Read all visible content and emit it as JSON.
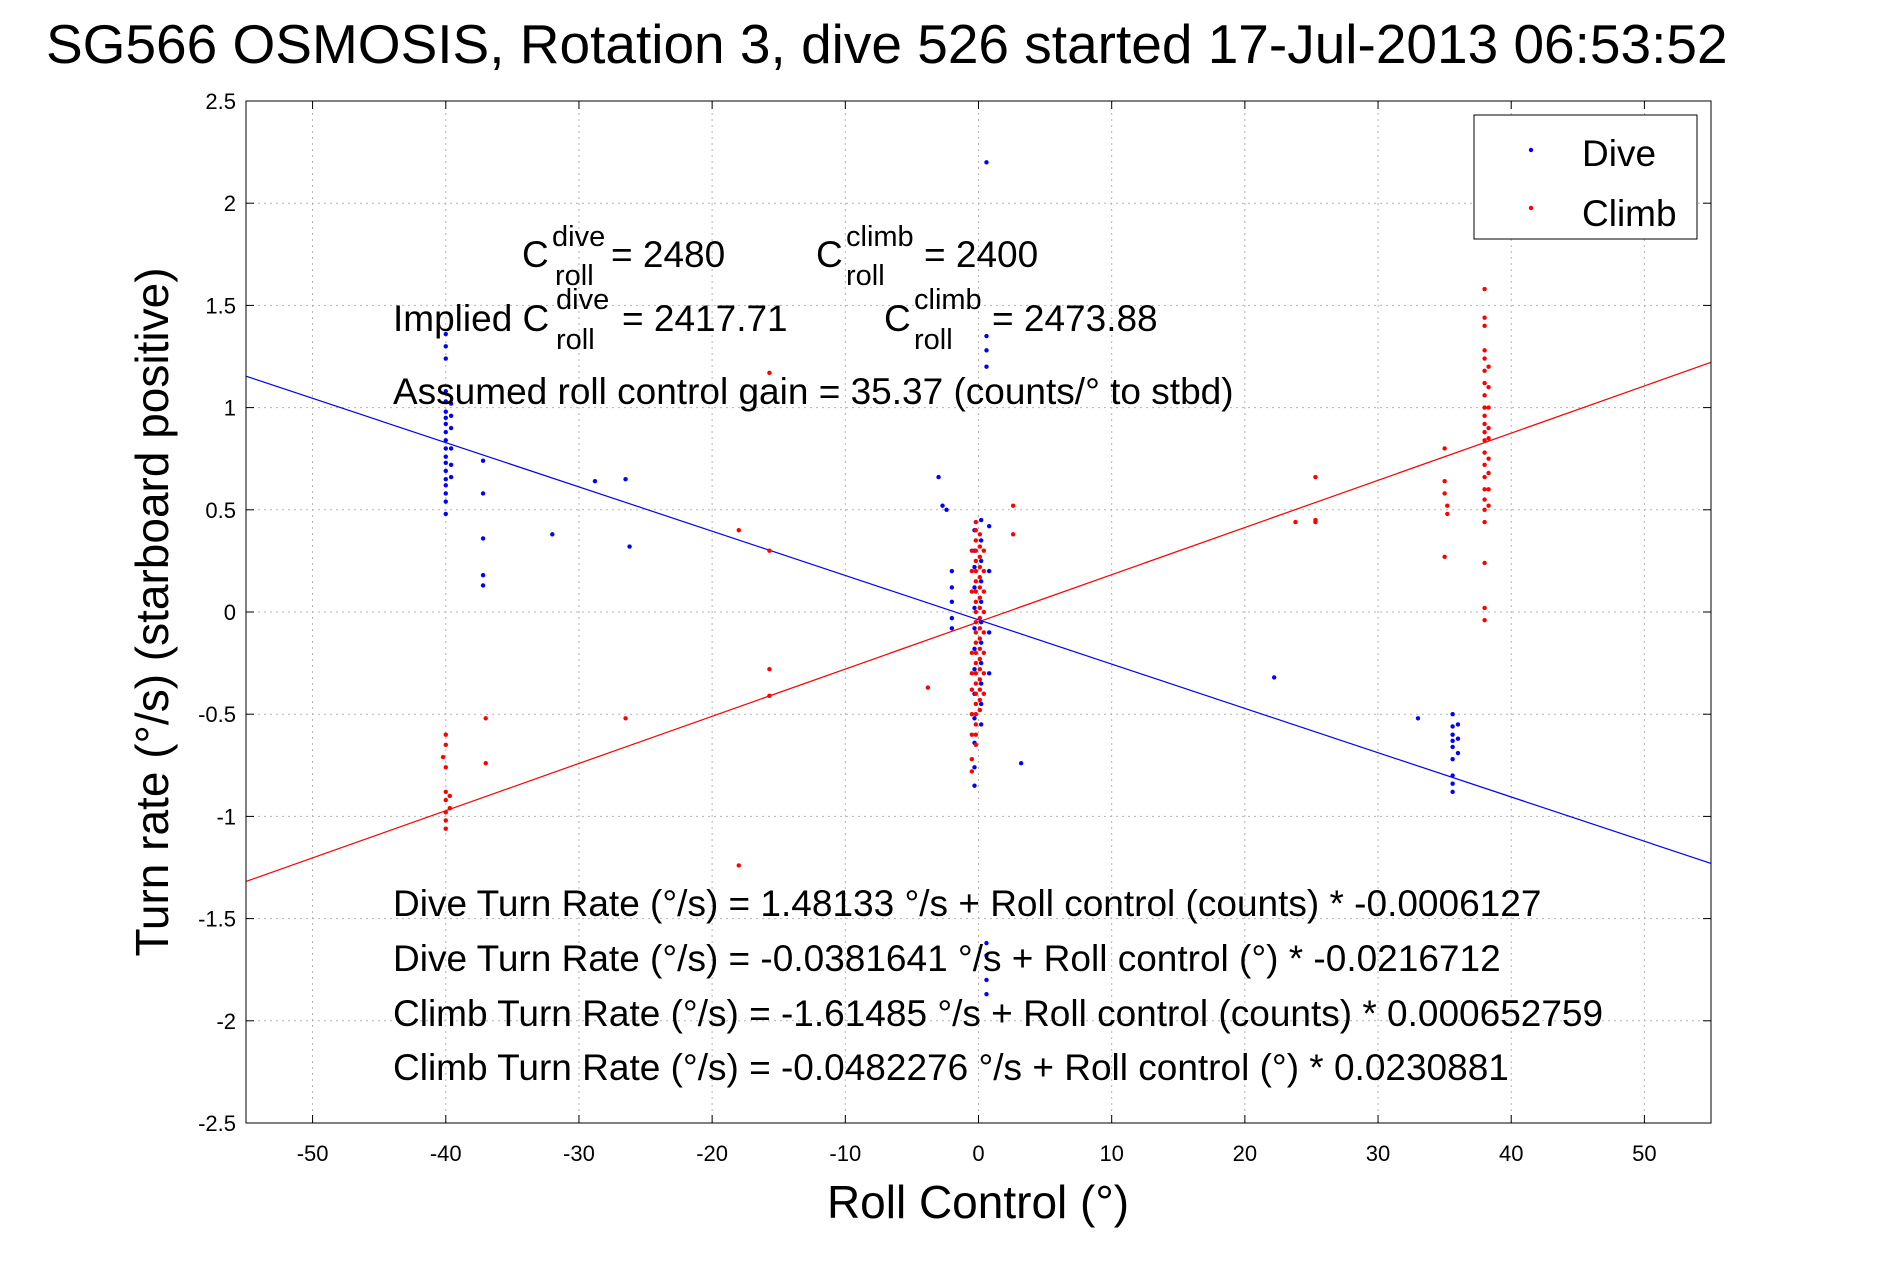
{
  "chart_data": {
    "type": "scatter",
    "title": "SG566 OSMOSIS, Rotation 3, dive 526 started 17-Jul-2013 06:53:52",
    "xlabel": "Roll Control (°)",
    "ylabel": "Turn rate (°/s) (starboard positive)",
    "xlim": [
      -55,
      55
    ],
    "ylim": [
      -2.5,
      2.5
    ],
    "xticks": [
      "-50",
      "-40",
      "-30",
      "-20",
      "-10",
      "0",
      "10",
      "20",
      "30",
      "40",
      "50"
    ],
    "yticks": [
      "2.5",
      "2",
      "1.5",
      "1",
      "0.5",
      "0",
      "-0.5",
      "-1",
      "-1.5",
      "-2",
      "-2.5"
    ],
    "grid": true,
    "legend_position": "top-right",
    "series": [
      {
        "name": "Dive",
        "color": "#0000ff",
        "marker": "point",
        "points": [
          [
            -40,
            1.36
          ],
          [
            -40,
            1.3
          ],
          [
            -40,
            1.24
          ],
          [
            -40,
            1.08
          ],
          [
            -40,
            1.03
          ],
          [
            -40,
            0.98
          ],
          [
            -40,
            0.95
          ],
          [
            -40,
            0.92
          ],
          [
            -40,
            0.88
          ],
          [
            -40,
            0.84
          ],
          [
            -40,
            0.8
          ],
          [
            -40,
            0.76
          ],
          [
            -40,
            0.73
          ],
          [
            -40,
            0.69
          ],
          [
            -40,
            0.65
          ],
          [
            -40,
            0.62
          ],
          [
            -40,
            0.58
          ],
          [
            -40,
            0.54
          ],
          [
            -40,
            0.48
          ],
          [
            -39.6,
            1.02
          ],
          [
            -39.6,
            0.96
          ],
          [
            -39.6,
            0.9
          ],
          [
            -39.6,
            0.8
          ],
          [
            -39.6,
            0.72
          ],
          [
            -39.6,
            0.66
          ],
          [
            -37.2,
            0.74
          ],
          [
            -37.2,
            0.58
          ],
          [
            -37.2,
            0.36
          ],
          [
            -37.2,
            0.18
          ],
          [
            -37.2,
            0.13
          ],
          [
            -32,
            0.38
          ],
          [
            -28.8,
            0.64
          ],
          [
            -26.5,
            0.65
          ],
          [
            -26.2,
            0.32
          ],
          [
            -3,
            0.66
          ],
          [
            -2.7,
            0.52
          ],
          [
            -2.4,
            0.5
          ],
          [
            -2,
            0.2
          ],
          [
            -2,
            0.12
          ],
          [
            -2,
            0.05
          ],
          [
            -2,
            -0.03
          ],
          [
            -2,
            -0.08
          ],
          [
            -0.3,
            0.4
          ],
          [
            -0.3,
            0.3
          ],
          [
            -0.3,
            0.22
          ],
          [
            -0.3,
            0.12
          ],
          [
            -0.3,
            0.02
          ],
          [
            -0.3,
            -0.08
          ],
          [
            -0.3,
            -0.18
          ],
          [
            -0.3,
            -0.28
          ],
          [
            -0.3,
            -0.4
          ],
          [
            -0.3,
            -0.52
          ],
          [
            -0.3,
            -0.64
          ],
          [
            -0.3,
            -0.76
          ],
          [
            -0.3,
            -0.85
          ],
          [
            0.2,
            0.45
          ],
          [
            0.2,
            0.35
          ],
          [
            0.2,
            0.25
          ],
          [
            0.2,
            0.15
          ],
          [
            0.2,
            0.05
          ],
          [
            0.2,
            -0.05
          ],
          [
            0.2,
            -0.15
          ],
          [
            0.2,
            -0.25
          ],
          [
            0.2,
            -0.35
          ],
          [
            0.2,
            -0.45
          ],
          [
            0.2,
            -0.55
          ],
          [
            0.6,
            2.2
          ],
          [
            0.6,
            1.35
          ],
          [
            0.6,
            1.28
          ],
          [
            0.6,
            1.2
          ],
          [
            0.6,
            -1.62
          ],
          [
            0.6,
            -1.68
          ],
          [
            0.6,
            -1.8
          ],
          [
            0.6,
            -1.87
          ],
          [
            0.8,
            0.42
          ],
          [
            0.8,
            0.2
          ],
          [
            0.8,
            -0.1
          ],
          [
            0.8,
            -0.3
          ],
          [
            3.2,
            -0.74
          ],
          [
            22.2,
            -0.32
          ],
          [
            33,
            -0.52
          ],
          [
            35.6,
            -0.5
          ],
          [
            35.6,
            -0.56
          ],
          [
            35.6,
            -0.6
          ],
          [
            35.6,
            -0.63
          ],
          [
            35.6,
            -0.66
          ],
          [
            35.6,
            -0.72
          ],
          [
            35.6,
            -0.8
          ],
          [
            35.6,
            -0.84
          ],
          [
            35.6,
            -0.88
          ],
          [
            36,
            -0.55
          ],
          [
            36,
            -0.62
          ],
          [
            36,
            -0.69
          ]
        ]
      },
      {
        "name": "Climb",
        "color": "#ff0000",
        "marker": "point",
        "points": [
          [
            -40.2,
            -0.71
          ],
          [
            -40,
            -0.6
          ],
          [
            -40,
            -0.65
          ],
          [
            -40,
            -0.76
          ],
          [
            -40,
            -0.88
          ],
          [
            -40,
            -0.92
          ],
          [
            -40,
            -0.98
          ],
          [
            -40,
            -1.02
          ],
          [
            -40,
            -1.06
          ],
          [
            -39.7,
            -0.9
          ],
          [
            -39.7,
            -0.96
          ],
          [
            -37,
            -0.52
          ],
          [
            -37,
            -0.74
          ],
          [
            -26.5,
            -0.52
          ],
          [
            -18,
            0.4
          ],
          [
            -18,
            -1.24
          ],
          [
            -15.7,
            1.17
          ],
          [
            -15.7,
            0.3
          ],
          [
            -15.7,
            -0.28
          ],
          [
            -15.7,
            -0.41
          ],
          [
            -3.8,
            -0.37
          ],
          [
            -0.5,
            -0.2
          ],
          [
            -0.5,
            -0.3
          ],
          [
            -0.5,
            -0.38
          ],
          [
            -0.5,
            -0.5
          ],
          [
            -0.5,
            -0.6
          ],
          [
            -0.5,
            -0.72
          ],
          [
            -0.5,
            -0.78
          ],
          [
            -0.5,
            0.1
          ],
          [
            -0.5,
            0.2
          ],
          [
            -0.5,
            0.3
          ],
          [
            -0.2,
            0.44
          ],
          [
            -0.2,
            0.4
          ],
          [
            -0.2,
            0.35
          ],
          [
            -0.2,
            0.3
          ],
          [
            -0.2,
            0.25
          ],
          [
            -0.2,
            0.2
          ],
          [
            -0.2,
            0.15
          ],
          [
            -0.2,
            0.1
          ],
          [
            -0.2,
            0.05
          ],
          [
            -0.2,
            0.0
          ],
          [
            -0.2,
            -0.05
          ],
          [
            -0.2,
            -0.1
          ],
          [
            -0.2,
            -0.15
          ],
          [
            -0.2,
            -0.2
          ],
          [
            -0.2,
            -0.25
          ],
          [
            -0.2,
            -0.3
          ],
          [
            -0.2,
            -0.35
          ],
          [
            -0.2,
            -0.4
          ],
          [
            -0.2,
            -0.45
          ],
          [
            -0.2,
            -0.5
          ],
          [
            -0.2,
            -0.55
          ],
          [
            -0.2,
            -0.6
          ],
          [
            -0.2,
            -0.65
          ],
          [
            0.1,
            0.38
          ],
          [
            0.1,
            0.32
          ],
          [
            0.1,
            0.27
          ],
          [
            0.1,
            0.22
          ],
          [
            0.1,
            0.17
          ],
          [
            0.1,
            0.12
          ],
          [
            0.1,
            0.07
          ],
          [
            0.1,
            0.02
          ],
          [
            0.1,
            -0.03
          ],
          [
            0.1,
            -0.08
          ],
          [
            0.1,
            -0.13
          ],
          [
            0.1,
            -0.18
          ],
          [
            0.1,
            -0.23
          ],
          [
            0.1,
            -0.28
          ],
          [
            0.1,
            -0.33
          ],
          [
            0.1,
            -0.38
          ],
          [
            0.1,
            -0.43
          ],
          [
            0.1,
            -0.48
          ],
          [
            0.4,
            0.3
          ],
          [
            0.4,
            0.2
          ],
          [
            0.4,
            0.1
          ],
          [
            0.4,
            0.0
          ],
          [
            0.4,
            -0.1
          ],
          [
            0.4,
            -0.2
          ],
          [
            0.4,
            -0.3
          ],
          [
            0.4,
            -0.4
          ],
          [
            2.6,
            0.52
          ],
          [
            2.6,
            0.38
          ],
          [
            23.8,
            0.44
          ],
          [
            25.3,
            0.66
          ],
          [
            25.3,
            0.45
          ],
          [
            25.3,
            0.44
          ],
          [
            35,
            0.8
          ],
          [
            35,
            0.64
          ],
          [
            35,
            0.58
          ],
          [
            35,
            0.27
          ],
          [
            35.2,
            0.52
          ],
          [
            35.2,
            0.48
          ],
          [
            38,
            1.58
          ],
          [
            38,
            1.44
          ],
          [
            38,
            1.4
          ],
          [
            38,
            1.28
          ],
          [
            38,
            1.24
          ],
          [
            38,
            1.18
          ],
          [
            38,
            1.12
          ],
          [
            38,
            1.06
          ],
          [
            38,
            1.0
          ],
          [
            38,
            0.96
          ],
          [
            38,
            0.92
          ],
          [
            38,
            0.88
          ],
          [
            38,
            0.84
          ],
          [
            38,
            0.78
          ],
          [
            38,
            0.72
          ],
          [
            38,
            0.66
          ],
          [
            38,
            0.6
          ],
          [
            38,
            0.55
          ],
          [
            38,
            0.5
          ],
          [
            38,
            0.44
          ],
          [
            38,
            0.24
          ],
          [
            38,
            0.02
          ],
          [
            38,
            -0.04
          ],
          [
            38.3,
            1.2
          ],
          [
            38.3,
            1.1
          ],
          [
            38.3,
            1.0
          ],
          [
            38.3,
            0.9
          ],
          [
            38.3,
            0.85
          ],
          [
            38.3,
            0.75
          ],
          [
            38.3,
            0.68
          ],
          [
            38.3,
            0.6
          ],
          [
            38.3,
            0.52
          ]
        ]
      }
    ],
    "fit_lines": [
      {
        "series": "Dive",
        "color": "#0000ff",
        "intercept": -0.0381641,
        "slope": -0.0216712
      },
      {
        "series": "Climb",
        "color": "#ff0000",
        "intercept": -0.0482276,
        "slope": 0.0230881
      }
    ],
    "annotations": {
      "c_dive_label": "C",
      "c_dive_sup": "dive",
      "c_dive_sub": "roll",
      "c_dive_value": " = 2480",
      "c_climb_label": "C",
      "c_climb_sup": "climb",
      "c_climb_sub": "roll",
      "c_climb_value": " = 2400",
      "implied_prefix": "Implied C",
      "implied_dive_sup": "dive",
      "implied_dive_sub": "roll",
      "implied_dive_value": " = 2417.71",
      "implied_climb_label": "C",
      "implied_climb_sup": "climb",
      "implied_climb_sub": "roll",
      "implied_climb_value": " = 2473.88",
      "gain": "Assumed roll control gain = 35.37 (counts/° to stbd)",
      "eq1": "Dive Turn Rate (°/s) = 1.48133 °/s + Roll control (counts) * -0.0006127",
      "eq2": "Dive Turn Rate (°/s) = -0.0381641 °/s + Roll control (°) * -0.0216712",
      "eq3": "Climb Turn Rate (°/s) = -1.61485 °/s + Roll control (counts) * 0.000652759",
      "eq4": "Climb Turn Rate (°/s) = -0.0482276 °/s + Roll control (°) * 0.0230881"
    }
  }
}
